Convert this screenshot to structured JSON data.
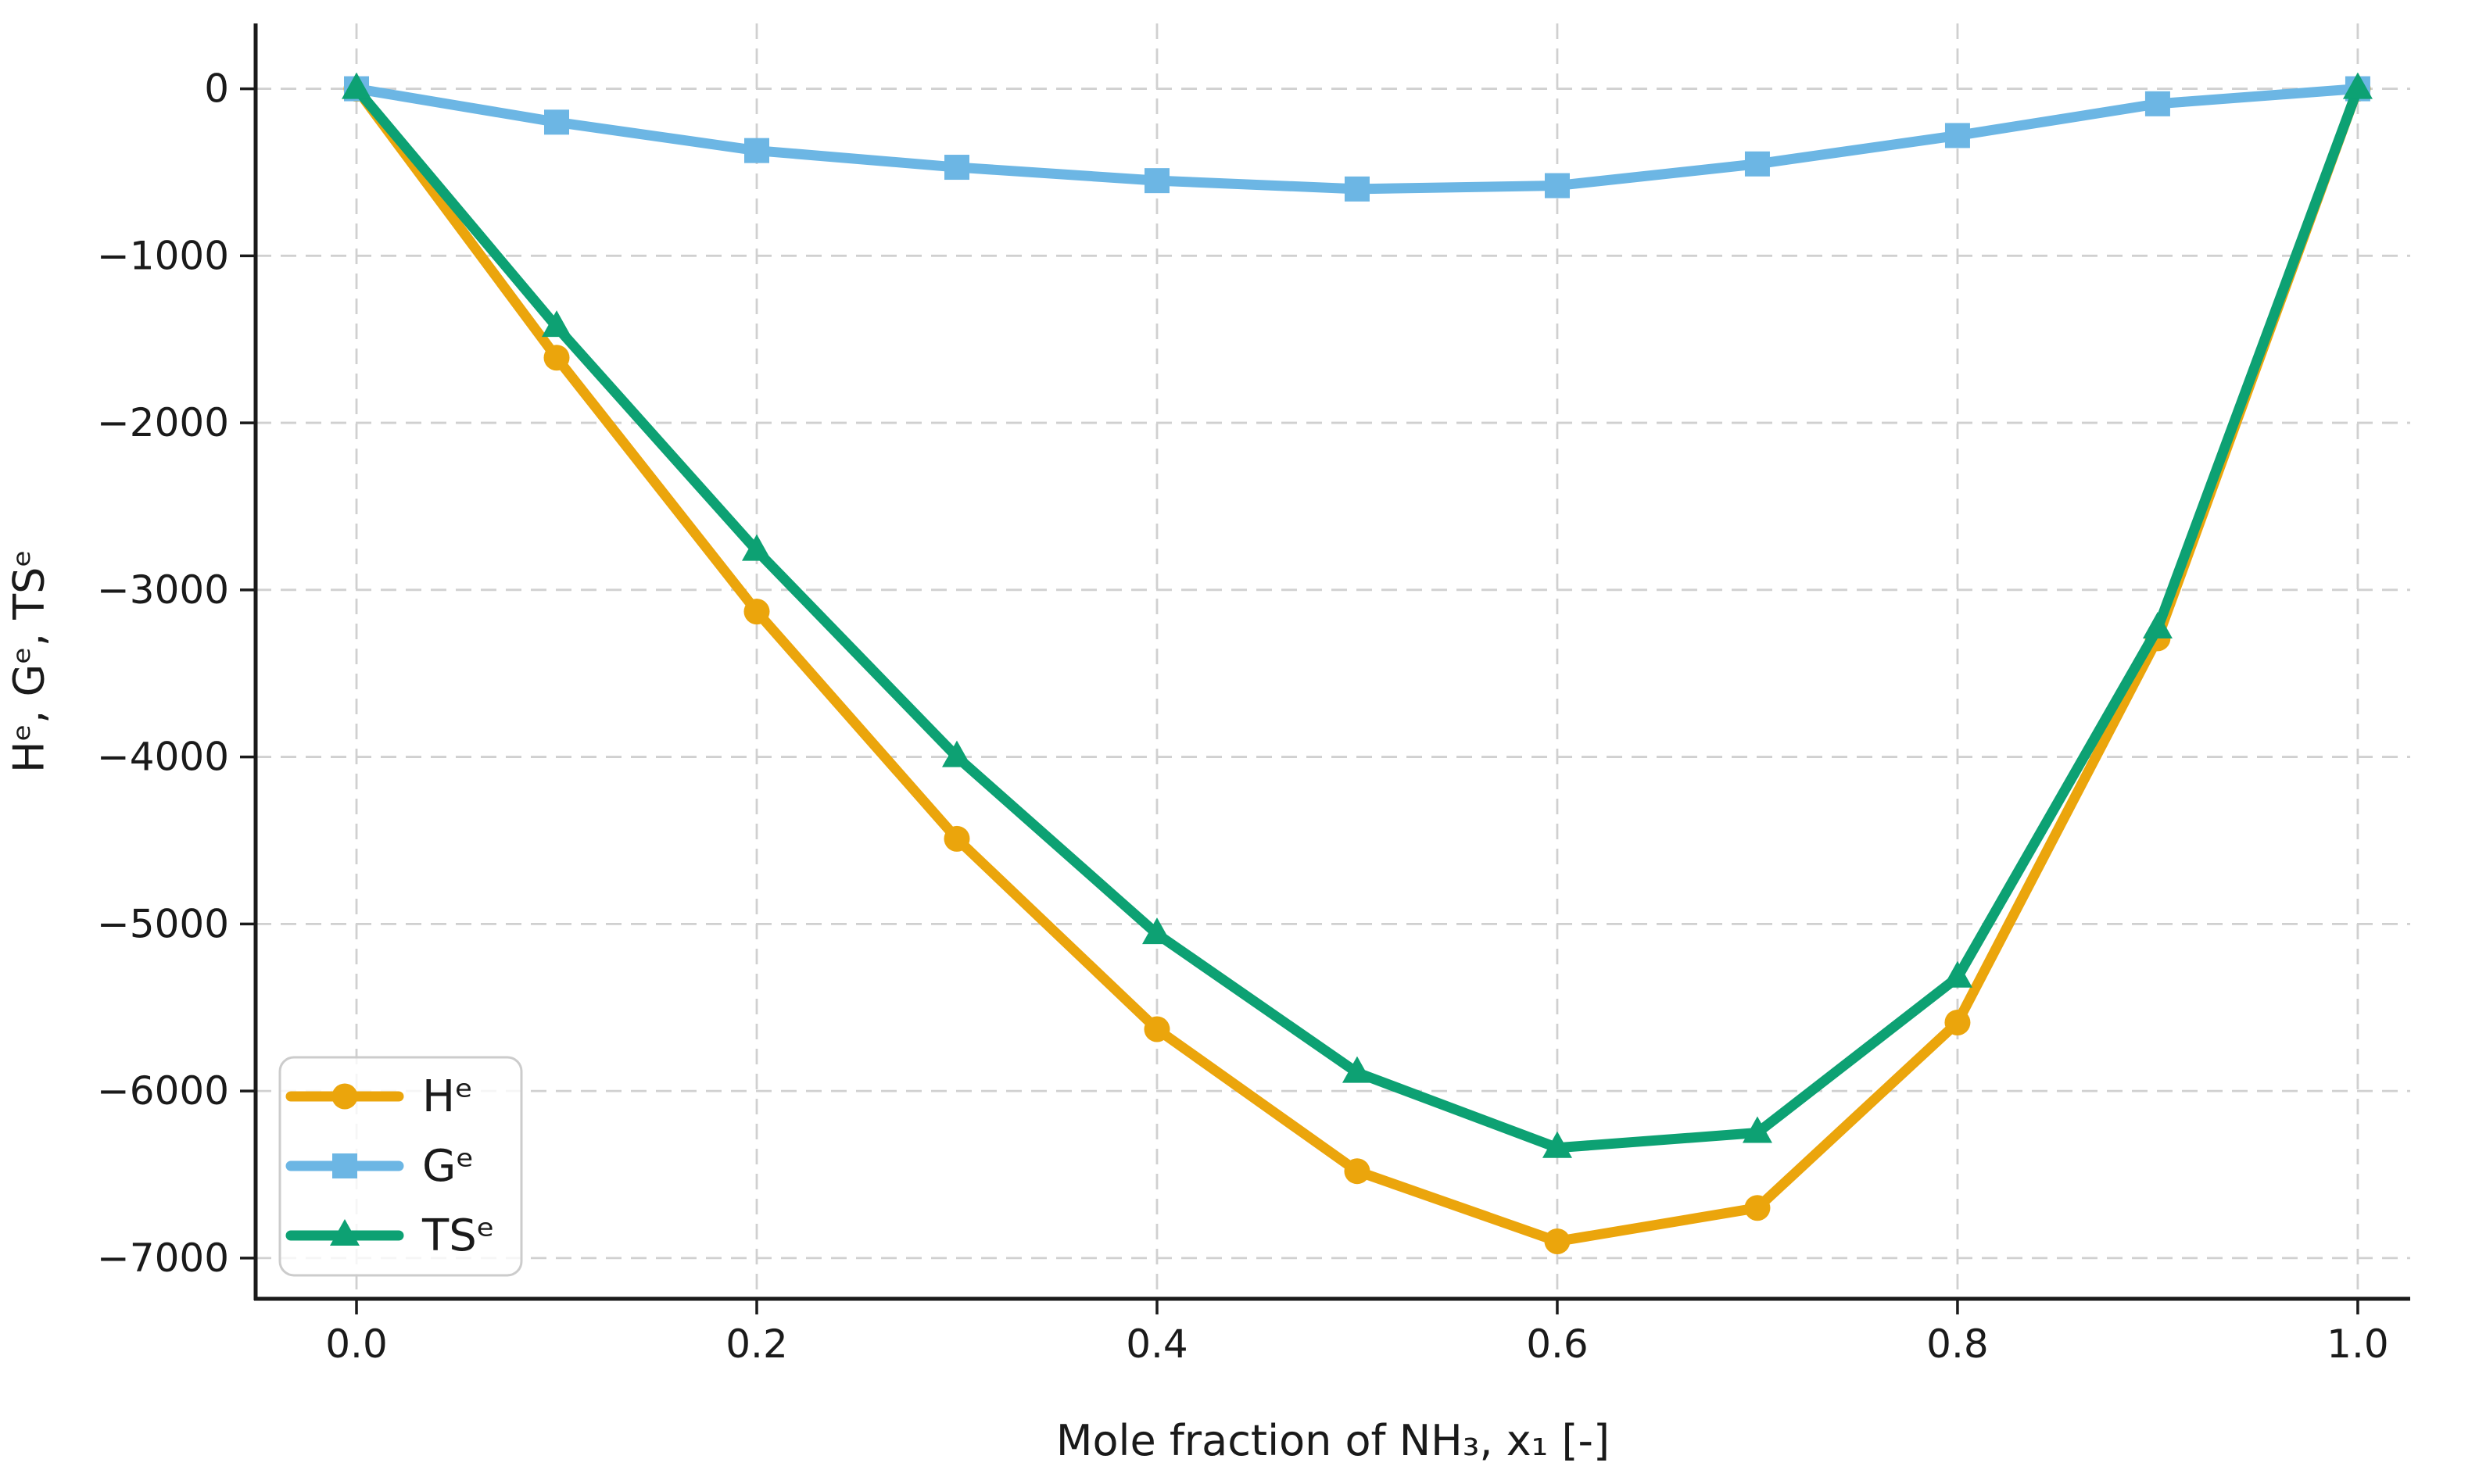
{
  "chart_data": {
    "type": "line",
    "title": "",
    "xlabel": "Mole fraction of NH₃, x₁ [-]",
    "ylabel": "Hᵉ, Gᵉ, TSᵉ",
    "x": [
      0.0,
      0.1,
      0.2,
      0.3,
      0.4,
      0.5,
      0.6,
      0.7,
      0.8,
      0.9,
      1.0
    ],
    "series": [
      {
        "id": "he",
        "name": "Hᵉ",
        "marker": "circle",
        "color": "#EBA50C",
        "values": [
          0,
          -1610,
          -3130,
          -4490,
          -5630,
          -6480,
          -6900,
          -6700,
          -5590,
          -3290,
          0
        ]
      },
      {
        "id": "ge",
        "name": "Gᵉ",
        "marker": "square",
        "color": "#6CB6E4",
        "values": [
          0,
          -200,
          -370,
          -470,
          -550,
          -600,
          -580,
          -450,
          -280,
          -90,
          0
        ]
      },
      {
        "id": "tse",
        "name": "TSᵉ",
        "marker": "triangle",
        "color": "#0DA173",
        "values": [
          0,
          -1425,
          -2765,
          -4000,
          -5060,
          -5890,
          -6340,
          -6250,
          -5320,
          -3230,
          0
        ]
      }
    ],
    "xticks": {
      "values": [
        0.0,
        0.2,
        0.4,
        0.6,
        0.8,
        1.0
      ],
      "labels": [
        "0.0",
        "0.2",
        "0.4",
        "0.6",
        "0.8",
        "1.0"
      ]
    },
    "yticks": {
      "values": [
        0,
        -1000,
        -2000,
        -3000,
        -4000,
        -5000,
        -6000,
        -7000
      ],
      "labels": [
        "0",
        "−1000",
        "−2000",
        "−3000",
        "−4000",
        "−5000",
        "−6000",
        "−7000"
      ]
    },
    "xlim": [
      -0.0504,
      1.0262
    ],
    "ylim": [
      -7244,
      391
    ],
    "grid": true,
    "grid_color": "#d0d0d0",
    "axis_color": "#1a1a1a",
    "legend_position": "lower left",
    "legend_border_color": "#cccccc"
  }
}
